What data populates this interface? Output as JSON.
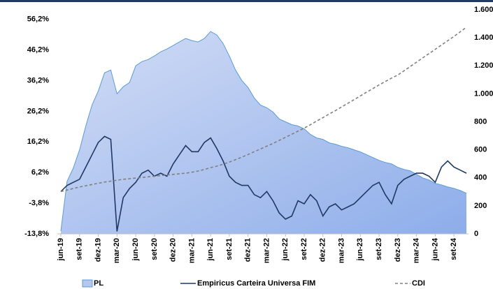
{
  "chart_data": {
    "type": "line",
    "categories": [
      "jun-19",
      null,
      null,
      "set-19",
      null,
      null,
      "dez-19",
      null,
      null,
      "mar-20",
      null,
      null,
      "jun-20",
      null,
      null,
      "set-20",
      null,
      null,
      "dez-20",
      null,
      null,
      "mar-21",
      null,
      null,
      "jun-21",
      null,
      null,
      "set-21",
      null,
      null,
      "dez-21",
      null,
      null,
      "mar-22",
      null,
      null,
      "jun-22",
      null,
      null,
      "set-22",
      null,
      null,
      "dez-22",
      null,
      null,
      "mar-23",
      null,
      null,
      "jun-23",
      null,
      null,
      "set-23",
      null,
      null,
      "dez-23",
      null,
      null,
      "mar-24",
      null,
      null,
      "jun-24",
      null,
      null,
      "set-24",
      null,
      null
    ],
    "series": [
      {
        "name": "PL",
        "color": "#5b9bd5",
        "mark": "area",
        "axis": "y2",
        "values": [
          20,
          375,
          470,
          600,
          770,
          920,
          1020,
          1150,
          1170,
          1000,
          1050,
          1080,
          1200,
          1230,
          1245,
          1270,
          1300,
          1320,
          1345,
          1370,
          1395,
          1380,
          1370,
          1395,
          1445,
          1420,
          1360,
          1270,
          1170,
          1095,
          1045,
          970,
          920,
          900,
          870,
          820,
          800,
          780,
          770,
          750,
          710,
          685,
          675,
          650,
          640,
          625,
          615,
          600,
          585,
          565,
          545,
          525,
          510,
          500,
          475,
          460,
          450,
          425,
          400,
          385,
          360,
          350,
          335,
          325,
          310,
          290
        ]
      },
      {
        "name": "Empiricus Carteira Universa FIM",
        "color": "#1f3864",
        "mark": "line",
        "values": [
          0,
          2,
          3,
          4,
          8,
          12,
          16,
          18,
          17,
          -13,
          -2,
          1,
          3,
          6,
          7,
          5,
          6,
          5,
          9,
          12,
          15,
          13,
          13,
          16,
          17.5,
          14,
          10,
          5,
          3,
          2,
          2,
          -1,
          -2,
          0,
          -3,
          -7,
          -9,
          -8,
          -3,
          -4,
          -1,
          -3,
          -8,
          -5,
          -4,
          -6,
          -5,
          -4,
          -2,
          0,
          2,
          3,
          -1,
          -4,
          2,
          4,
          5,
          6,
          6,
          5,
          3,
          8,
          10,
          8,
          7,
          6
        ]
      },
      {
        "name": "CDI",
        "color": "#808080",
        "mark": "line",
        "dashed": true,
        "values": [
          0,
          0.5,
          1.0,
          1.5,
          1.9,
          2.3,
          2.7,
          3.1,
          3.4,
          3.7,
          4.0,
          4.2,
          4.4,
          4.6,
          4.8,
          5.0,
          5.2,
          5.4,
          5.6,
          5.8,
          6.0,
          6.3,
          6.7,
          7.2,
          7.8,
          8.3,
          8.9,
          9.6,
          10.4,
          11.2,
          12.1,
          13.0,
          13.9,
          14.8,
          15.7,
          16.7,
          17.7,
          18.7,
          19.7,
          20.7,
          21.8,
          23.0,
          24.1,
          25.3,
          26.4,
          27.6,
          28.8,
          30.0,
          31.2,
          32.4,
          33.6,
          34.8,
          35.9,
          37.0,
          38.0,
          39.4,
          40.8,
          42.2,
          43.6,
          45.0,
          46.4,
          47.8,
          49.2,
          50.6,
          52.1,
          53.6
        ]
      }
    ],
    "ylim": [
      -13.8,
      59.3
    ],
    "yticks": [
      {
        "value": -13.8,
        "label": "-13,8%"
      },
      {
        "value": -3.8,
        "label": "-3,8%"
      },
      {
        "value": 6.2,
        "label": "6,2%"
      },
      {
        "value": 16.2,
        "label": "16,2%"
      },
      {
        "value": 26.2,
        "label": "26,2%"
      },
      {
        "value": 36.2,
        "label": "36,2%"
      },
      {
        "value": 46.2,
        "label": "46,2%"
      },
      {
        "value": 56.2,
        "label": "56,2%"
      }
    ],
    "y2lim": [
      0,
      1600
    ],
    "y2ticks": [
      0,
      200,
      400,
      600,
      800,
      {
        "value": 1000,
        "label": "1.000"
      },
      {
        "value": 1200,
        "label": "1.200"
      },
      {
        "value": 1400,
        "label": "1.400"
      },
      {
        "value": 1600,
        "label": "1.600"
      }
    ],
    "grid": false,
    "legend": "bottom"
  }
}
